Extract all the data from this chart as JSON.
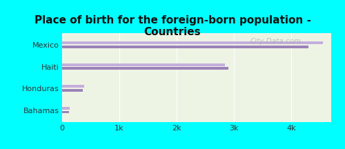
{
  "title": "Place of birth for the foreign-born population -\nCountries",
  "categories": [
    "Mexico",
    "Haiti",
    "Honduras",
    "Bahamas"
  ],
  "bar_values_light": [
    4550,
    2850,
    390,
    130
  ],
  "bar_values_dark": [
    4300,
    2900,
    360,
    115
  ],
  "bar_color_light": "#c4aedd",
  "bar_color_dark": "#9b82b8",
  "background_outer": "#00ffff",
  "background_inner_top": "#eaf2e0",
  "background_inner_bottom": "#f5f8ee",
  "xlim": [
    0,
    4700
  ],
  "xtick_labels": [
    "0",
    "1k",
    "2k",
    "3k",
    "4k"
  ],
  "xtick_values": [
    0,
    1000,
    2000,
    3000,
    4000
  ],
  "watermark": "City-Data.com",
  "title_fontsize": 11,
  "bar_height": 0.12,
  "bar_gap": 0.06
}
